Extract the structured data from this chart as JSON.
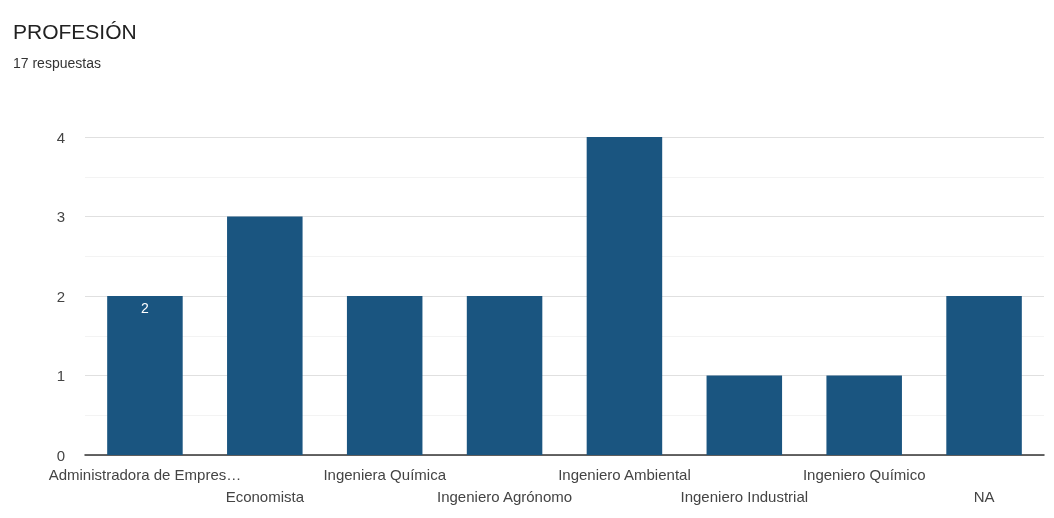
{
  "chart_data": {
    "type": "bar",
    "title": "PROFESIÓN",
    "subtitle": "17 respuestas",
    "categories": [
      "Administradora de Empres…",
      "Economista",
      "Ingeniera Química",
      "Ingeniero Agrónomo",
      "Ingeniero Ambiental",
      "Ingeniero Industrial",
      "Ingeniero Químico",
      "NA"
    ],
    "values": [
      2,
      3,
      2,
      2,
      4,
      1,
      1,
      2
    ],
    "value_labels": [
      "2",
      null,
      null,
      null,
      null,
      null,
      null,
      null
    ],
    "color": "#1a5580",
    "ylim": [
      0,
      4
    ],
    "yticks": [
      0,
      1,
      2,
      3,
      4
    ],
    "grid": "y"
  }
}
